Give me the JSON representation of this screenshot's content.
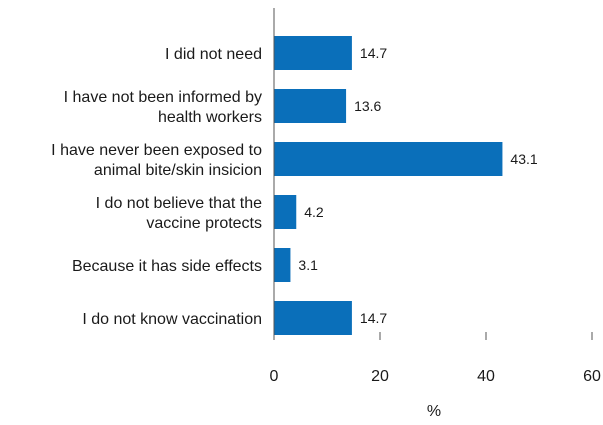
{
  "chart_data": {
    "type": "bar",
    "orientation": "horizontal",
    "categories": [
      [
        "I did not need"
      ],
      [
        "I have not been informed by",
        "health workers"
      ],
      [
        "I have never been exposed to",
        "animal bite/skin insicion"
      ],
      [
        "I do not believe that the",
        "vaccine protects"
      ],
      [
        "Because it has side effects"
      ],
      [
        "I do not know vaccination"
      ]
    ],
    "values": [
      14.7,
      13.6,
      43.1,
      4.2,
      3.1,
      14.7
    ],
    "value_labels": [
      "14.7",
      "13.6",
      "43.1",
      "4.2",
      "3.1",
      "14.7"
    ],
    "xticks": [
      "0",
      "20",
      "40",
      "60"
    ],
    "xlim": [
      0,
      60
    ],
    "xlabel": "%",
    "bar_color": "#0a6fba",
    "axis_color": "#555555",
    "grid": false,
    "legend": "none"
  }
}
